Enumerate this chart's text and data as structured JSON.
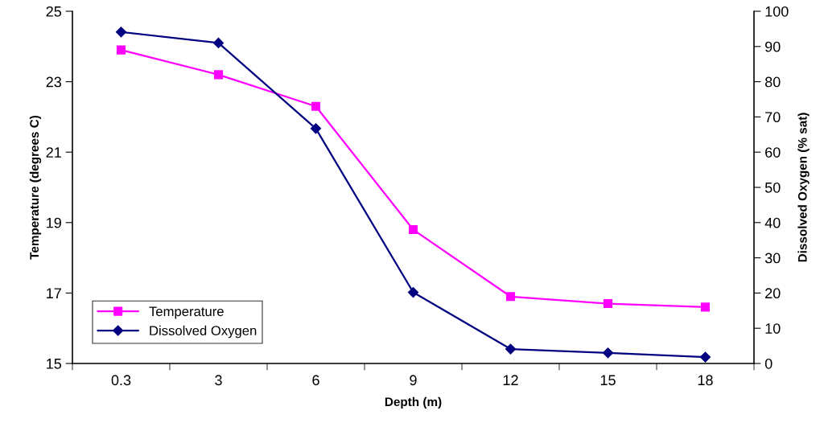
{
  "chart_data": {
    "type": "line",
    "xlabel": "Depth (m)",
    "ylabel": "Temperature (degrees C)",
    "y2label": "Dissolved Oxygen (% sat)",
    "categories": [
      "0.3",
      "3",
      "6",
      "9",
      "12",
      "15",
      "18"
    ],
    "series": [
      {
        "name": "Temperature",
        "color": "#ff00ff",
        "marker": "square",
        "values": [
          23.9,
          23.2,
          22.3,
          18.8,
          16.9,
          16.7,
          16.6
        ]
      },
      {
        "name": "Dissolved Oxygen",
        "color": "#000080",
        "marker": "diamond",
        "axis": "y2",
        "values": [
          94.1,
          91.0,
          66.7,
          20.2,
          4.1,
          3.0,
          1.8
        ]
      }
    ],
    "ylim": [
      15,
      25
    ],
    "yticks": [
      15,
      17,
      19,
      21,
      23,
      25
    ],
    "y2lim": [
      0,
      100
    ],
    "y2ticks": [
      0,
      10,
      20,
      30,
      40,
      50,
      60,
      70,
      80,
      90,
      100
    ],
    "legend": "bottom left",
    "grid": false,
    "line_style": "solid"
  }
}
